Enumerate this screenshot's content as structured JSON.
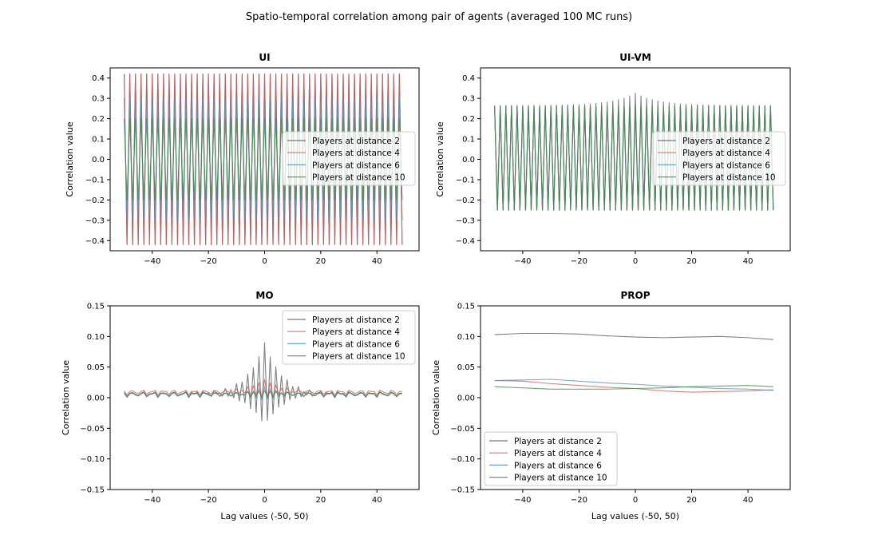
{
  "figure_title": "Spatio-temporal correlation among pair of agents (averaged 100 MC runs)",
  "chart_data": [
    {
      "type": "line",
      "title": "UI",
      "xlabel": "",
      "ylabel": "Correlation value",
      "xlim": [
        -55,
        55
      ],
      "ylim": [
        -0.45,
        0.45
      ],
      "xticks": [
        -40,
        -20,
        0,
        20,
        40
      ],
      "yticks": [
        -0.4,
        -0.3,
        -0.2,
        -0.1,
        0.0,
        0.1,
        0.2,
        0.3,
        0.4
      ],
      "ytick_labels": [
        "−0.4",
        "−0.3",
        "−0.2",
        "−0.1",
        "0.0",
        "0.1",
        "0.2",
        "0.3",
        "0.4"
      ],
      "xtick_labels": [
        "−40",
        "−20",
        "0",
        "20",
        "40"
      ],
      "legend_location": "center-right",
      "x_range": [
        -50,
        49
      ],
      "series": [
        {
          "name": "Players at distance 2",
          "color": "#555555",
          "pattern": "alternating",
          "even_value": 0.42,
          "odd_value": -0.42
        },
        {
          "name": "Players at distance 4",
          "color": "#d9534f",
          "pattern": "alternating",
          "even_value": 0.42,
          "odd_value": -0.42
        },
        {
          "name": "Players at distance 6",
          "color": "#4a90c8",
          "pattern": "alternating",
          "even_value": 0.3,
          "odd_value": -0.3
        },
        {
          "name": "Players at distance 10",
          "color": "#3a8a3a",
          "pattern": "alternating",
          "even_value": 0.2,
          "odd_value": -0.2
        }
      ]
    },
    {
      "type": "line",
      "title": "UI-VM",
      "xlabel": "",
      "ylabel": "Correlation value",
      "xlim": [
        -55,
        55
      ],
      "ylim": [
        -0.45,
        0.45
      ],
      "xticks": [
        -40,
        -20,
        0,
        20,
        40
      ],
      "yticks": [
        -0.4,
        -0.3,
        -0.2,
        -0.1,
        0.0,
        0.1,
        0.2,
        0.3,
        0.4
      ],
      "ytick_labels": [
        "−0.4",
        "−0.3",
        "−0.2",
        "−0.1",
        "0.0",
        "0.1",
        "0.2",
        "0.3",
        "0.4"
      ],
      "xtick_labels": [
        "−40",
        "−20",
        "0",
        "20",
        "40"
      ],
      "legend_location": "center-right",
      "x_range": [
        -50,
        49
      ],
      "series": [
        {
          "name": "Players at distance 2",
          "color": "#555555",
          "pattern": "alternating-peak",
          "even_value": 0.265,
          "odd_value": -0.25,
          "peak_value": 0.325
        },
        {
          "name": "Players at distance 4",
          "color": "#d9534f",
          "pattern": "alternating",
          "even_value": 0.26,
          "odd_value": -0.25
        },
        {
          "name": "Players at distance 6",
          "color": "#4a90c8",
          "pattern": "alternating",
          "even_value": 0.26,
          "odd_value": -0.25
        },
        {
          "name": "Players at distance 10",
          "color": "#3a8a3a",
          "pattern": "alternating",
          "even_value": 0.26,
          "odd_value": -0.25
        }
      ]
    },
    {
      "type": "line",
      "title": "MO",
      "xlabel": "Lag values (-50, 50)",
      "ylabel": "Correlation value",
      "xlim": [
        -55,
        55
      ],
      "ylim": [
        -0.15,
        0.15
      ],
      "xticks": [
        -40,
        -20,
        0,
        20,
        40
      ],
      "yticks": [
        -0.15,
        -0.1,
        -0.05,
        0.0,
        0.05,
        0.1,
        0.15
      ],
      "ytick_labels": [
        "−0.15",
        "−0.10",
        "−0.05",
        "0.00",
        "0.05",
        "0.10",
        "0.15"
      ],
      "xtick_labels": [
        "−40",
        "−20",
        "0",
        "20",
        "40"
      ],
      "legend_location": "top-right",
      "x_range": [
        -50,
        49
      ],
      "series": [
        {
          "name": "Players at distance 2",
          "color": "#555555",
          "pattern": "damped",
          "base": 0.006,
          "peak": 0.09,
          "trough": -0.045
        },
        {
          "name": "Players at distance 4",
          "color": "#d9534f",
          "pattern": "damped",
          "base": 0.009,
          "peak": 0.03,
          "trough": 0.0
        },
        {
          "name": "Players at distance 6",
          "color": "#4a90c8",
          "pattern": "damped",
          "base": 0.005,
          "peak": 0.018,
          "trough": -0.004
        },
        {
          "name": "Players at distance 10",
          "color": "#3a8a3a",
          "pattern": "damped",
          "base": 0.006,
          "peak": 0.012,
          "trough": 0.0
        }
      ]
    },
    {
      "type": "line",
      "title": "PROP",
      "xlabel": "Lag values (-50, 50)",
      "ylabel": "Correlation value",
      "xlim": [
        -55,
        55
      ],
      "ylim": [
        -0.15,
        0.15
      ],
      "xticks": [
        -40,
        -20,
        0,
        20,
        40
      ],
      "yticks": [
        -0.15,
        -0.1,
        -0.05,
        0.0,
        0.05,
        0.1,
        0.15
      ],
      "ytick_labels": [
        "−0.15",
        "−0.10",
        "−0.05",
        "0.00",
        "0.05",
        "0.10",
        "0.15"
      ],
      "xtick_labels": [
        "−40",
        "−20",
        "0",
        "20",
        "40"
      ],
      "legend_location": "bottom-left",
      "series": [
        {
          "name": "Players at distance 2",
          "color": "#555555",
          "pattern": "points",
          "x": [
            -50,
            -40,
            -30,
            -20,
            -10,
            0,
            10,
            20,
            30,
            40,
            49
          ],
          "values": [
            0.103,
            0.105,
            0.105,
            0.104,
            0.101,
            0.099,
            0.098,
            0.099,
            0.1,
            0.098,
            0.095
          ]
        },
        {
          "name": "Players at distance 4",
          "color": "#d9534f",
          "pattern": "points",
          "x": [
            -50,
            -40,
            -30,
            -20,
            -10,
            0,
            10,
            20,
            30,
            40,
            49
          ],
          "values": [
            0.028,
            0.027,
            0.023,
            0.02,
            0.017,
            0.015,
            0.011,
            0.009,
            0.01,
            0.011,
            0.013
          ]
        },
        {
          "name": "Players at distance 6",
          "color": "#4a90c8",
          "pattern": "points",
          "x": [
            -50,
            -40,
            -30,
            -20,
            -10,
            0,
            10,
            20,
            30,
            40,
            49
          ],
          "values": [
            0.028,
            0.029,
            0.03,
            0.027,
            0.024,
            0.022,
            0.019,
            0.017,
            0.015,
            0.014,
            0.012
          ]
        },
        {
          "name": "Players at distance 10",
          "color": "#3a8a3a",
          "pattern": "points",
          "x": [
            -50,
            -40,
            -30,
            -20,
            -10,
            0,
            10,
            20,
            30,
            40,
            49
          ],
          "values": [
            0.018,
            0.016,
            0.014,
            0.014,
            0.014,
            0.015,
            0.016,
            0.018,
            0.019,
            0.02,
            0.018
          ]
        }
      ]
    }
  ]
}
